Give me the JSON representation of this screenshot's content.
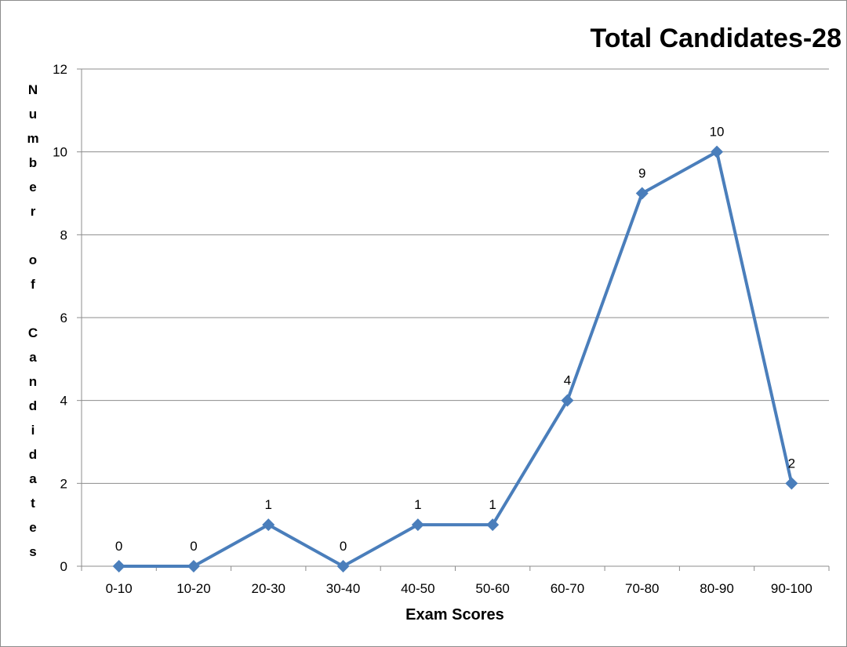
{
  "chart_data": {
    "type": "line",
    "title": "Total Candidates-28",
    "xlabel": "Exam Scores",
    "ylabel": "Number of Candidates",
    "categories": [
      "0-10",
      "10-20",
      "20-30",
      "30-40",
      "40-50",
      "50-60",
      "60-70",
      "70-80",
      "80-90",
      "90-100"
    ],
    "series": [
      {
        "values": [
          0,
          0,
          1,
          0,
          1,
          1,
          4,
          9,
          10,
          2
        ]
      }
    ],
    "ylim": [
      0,
      12
    ],
    "yticks": [
      0,
      2,
      4,
      6,
      8,
      10,
      12
    ],
    "grid": true,
    "legend": "none",
    "data_labels": true,
    "series_color": "#4A7EBB"
  }
}
